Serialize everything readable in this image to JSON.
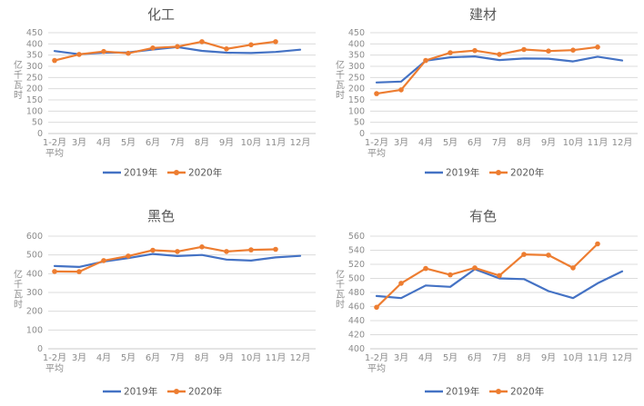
{
  "page": {
    "background": "#ffffff",
    "accent_blue": "#4472C4",
    "accent_orange": "#ED7D31"
  },
  "chart_data": [
    {
      "type": "line",
      "title": "化工",
      "ylabel": "亿千瓦时",
      "xlabel": "",
      "categories": [
        "1-2月\n平均",
        "3月",
        "4月",
        "5月",
        "6月",
        "7月",
        "8月",
        "9月",
        "10月",
        "11月",
        "12月"
      ],
      "ylim": [
        0,
        450
      ],
      "ystep": 50,
      "grid": true,
      "legend_position": "bottom",
      "series": [
        {
          "name": "2019年",
          "color": "#4472C4",
          "marker": "none",
          "values": [
            368,
            354,
            361,
            362,
            375,
            386,
            369,
            361,
            359,
            364,
            374
          ]
        },
        {
          "name": "2020年",
          "color": "#ED7D31",
          "marker": "circle",
          "values": [
            326,
            353,
            366,
            358,
            382,
            388,
            410,
            378,
            396,
            410,
            null
          ]
        }
      ]
    },
    {
      "type": "line",
      "title": "建材",
      "ylabel": "亿千瓦时",
      "xlabel": "",
      "categories": [
        "1-2月\n平均",
        "3月",
        "4月",
        "5月",
        "6月",
        "7月",
        "8月",
        "9月",
        "10月",
        "11月",
        "12月"
      ],
      "ylim": [
        0,
        450
      ],
      "ystep": 50,
      "grid": true,
      "legend_position": "bottom",
      "series": [
        {
          "name": "2019年",
          "color": "#4472C4",
          "marker": "none",
          "values": [
            228,
            232,
            325,
            340,
            344,
            328,
            335,
            334,
            322,
            343,
            326
          ]
        },
        {
          "name": "2020年",
          "color": "#ED7D31",
          "marker": "circle",
          "values": [
            178,
            195,
            326,
            361,
            370,
            353,
            375,
            368,
            372,
            386,
            null
          ]
        }
      ]
    },
    {
      "type": "line",
      "title": "黑色",
      "ylabel": "亿千瓦时",
      "xlabel": "",
      "categories": [
        "1-2月\n平均",
        "3月",
        "4月",
        "5月",
        "6月",
        "7月",
        "8月",
        "9月",
        "10月",
        "11月",
        "12月"
      ],
      "ylim": [
        0,
        600
      ],
      "ystep": 100,
      "grid": true,
      "legend_position": "bottom",
      "series": [
        {
          "name": "2019年",
          "color": "#4472C4",
          "marker": "none",
          "values": [
            441,
            436,
            465,
            483,
            505,
            494,
            500,
            475,
            470,
            487,
            495
          ]
        },
        {
          "name": "2020年",
          "color": "#ED7D31",
          "marker": "circle",
          "values": [
            412,
            411,
            470,
            494,
            525,
            518,
            543,
            518,
            527,
            530,
            null
          ]
        }
      ]
    },
    {
      "type": "line",
      "title": "有色",
      "ylabel": "亿千瓦时",
      "xlabel": "",
      "categories": [
        "1-2月\n平均",
        "3月",
        "4月",
        "5月",
        "6月",
        "7月",
        "8月",
        "9月",
        "10月",
        "11月",
        "12月"
      ],
      "ylim": [
        400,
        560
      ],
      "ystep": 20,
      "grid": true,
      "legend_position": "bottom",
      "series": [
        {
          "name": "2019年",
          "color": "#4472C4",
          "marker": "none",
          "values": [
            475,
            472,
            490,
            488,
            513,
            500,
            499,
            482,
            472,
            493,
            510
          ]
        },
        {
          "name": "2020年",
          "color": "#ED7D31",
          "marker": "circle",
          "values": [
            459,
            493,
            514,
            505,
            515,
            504,
            534,
            533,
            515,
            549,
            null
          ]
        }
      ]
    }
  ]
}
